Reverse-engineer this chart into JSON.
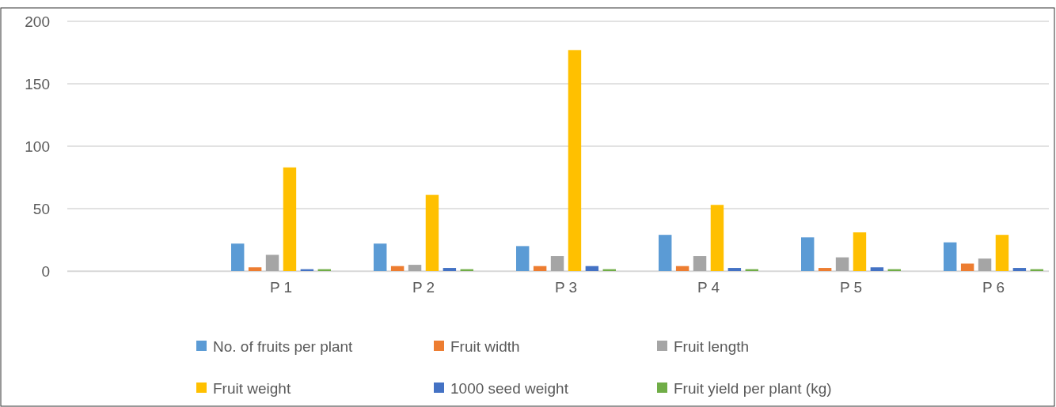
{
  "chart_data": {
    "type": "bar",
    "categories": [
      null,
      "P 1",
      "P 2",
      "P 3",
      "P 4",
      "P 5",
      "P 6"
    ],
    "series": [
      {
        "name": "No. of fruits per plant",
        "color": "#5b9bd5",
        "values": [
          null,
          22,
          22,
          20,
          29,
          27,
          23
        ]
      },
      {
        "name": "Fruit width",
        "color": "#ed7d31",
        "values": [
          null,
          3,
          4,
          4,
          4,
          2.5,
          6
        ]
      },
      {
        "name": "Fruit length",
        "color": "#a5a5a5",
        "values": [
          null,
          13,
          5,
          12,
          12,
          11,
          10
        ]
      },
      {
        "name": "Fruit weight",
        "color": "#ffc000",
        "values": [
          null,
          83,
          61,
          177,
          53,
          31,
          29
        ]
      },
      {
        "name": "1000 seed weight",
        "color": "#4472c4",
        "values": [
          null,
          1.5,
          2.5,
          4,
          2.5,
          3,
          2.5
        ]
      },
      {
        "name": "Fruit yield per plant (kg)",
        "color": "#70ad47",
        "values": [
          null,
          1.5,
          1.5,
          1.5,
          1.5,
          1.5,
          1.5
        ]
      }
    ],
    "ylim": [
      0,
      200
    ],
    "yticks": [
      0,
      50,
      100,
      150,
      200
    ],
    "grid": "y",
    "legend": "bottom"
  }
}
